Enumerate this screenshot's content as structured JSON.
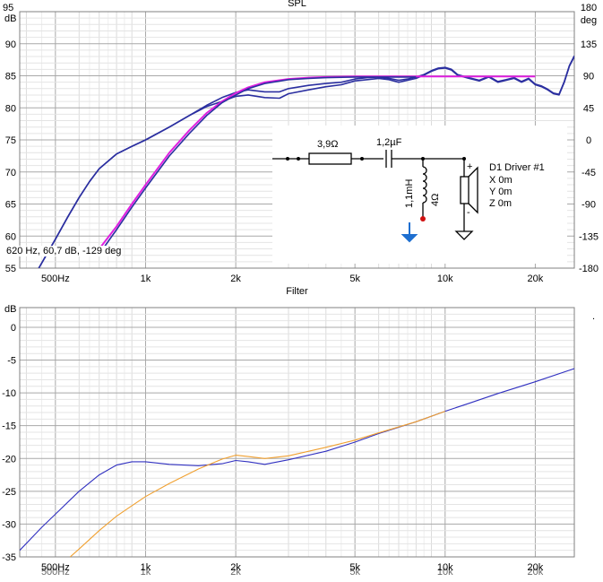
{
  "status_readout": "620 Hz, 60,7 dB, -129 deg",
  "chart_data": [
    {
      "type": "line",
      "title": "SPL",
      "ylabel": "dB",
      "y2label": "deg",
      "xscale": "log",
      "xlim": [
        380,
        27000
      ],
      "ylim": [
        55,
        95
      ],
      "y2lim": [
        -180,
        180
      ],
      "grid": true,
      "xticks": [
        500,
        1000,
        2000,
        5000,
        10000,
        20000
      ],
      "xtick_labels": [
        "500Hz",
        "1k",
        "2k",
        "5k",
        "10k",
        "20k"
      ],
      "yticks": [
        55,
        60,
        65,
        70,
        75,
        80,
        85,
        90,
        95
      ],
      "y2ticks": [
        -180,
        -135,
        -90,
        -45,
        0,
        45,
        90,
        135,
        180
      ],
      "colors": {
        "measured": "#2b2fa0",
        "target": "#e020e0"
      },
      "series": [
        {
          "key": "measured",
          "x": [
            440,
            500,
            550,
            600,
            650,
            700,
            800,
            900,
            1000,
            1200,
            1400,
            1600,
            1800,
            2000,
            2200,
            2500,
            2800,
            3000,
            3500,
            4000,
            4500,
            5000,
            5500,
            6000,
            6500,
            7000,
            7500,
            8000,
            8500,
            9000,
            9500,
            10000,
            10500,
            11000,
            12000,
            13000,
            14000,
            15000,
            16000,
            17000,
            18000,
            19000,
            20000,
            21000,
            22000,
            23000,
            24000,
            25000,
            26000,
            27000
          ],
          "y": [
            55,
            59.5,
            63,
            66,
            68.5,
            70.5,
            72.8,
            74,
            75,
            77,
            78.8,
            80.2,
            81,
            81.8,
            82,
            81.6,
            81.5,
            82.2,
            82.8,
            83.3,
            83.6,
            84.2,
            84.4,
            84.6,
            84.4,
            84.0,
            84.3,
            84.6,
            85.1,
            85.7,
            86.1,
            86.2,
            85.9,
            85.1,
            84.6,
            84.2,
            84.8,
            84.0,
            84.3,
            84.6,
            84.0,
            84.5,
            83.6,
            83.3,
            82.8,
            82.2,
            82.0,
            84.0,
            86.5,
            88.0
          ]
        },
        {
          "key": "measured",
          "x": [
            440,
            500,
            550,
            600,
            650,
            700,
            800,
            900,
            1000,
            1200,
            1400,
            1600,
            1800,
            2000,
            2200,
            2500,
            2800,
            3000,
            3500,
            4000,
            4500,
            5000,
            5500,
            6000,
            6500,
            7000,
            7500,
            8000,
            8500,
            9000,
            9500,
            10000,
            10500,
            11000,
            12000,
            13000,
            14000,
            15000,
            16000,
            17000,
            18000,
            19000,
            20000,
            21000,
            22000,
            23000,
            24000,
            25000,
            26000,
            27000
          ],
          "y": [
            55,
            59.5,
            63,
            66,
            68.5,
            70.5,
            72.8,
            74,
            75,
            77,
            78.8,
            80.4,
            81.6,
            82.4,
            82.8,
            82.5,
            82.5,
            83.0,
            83.5,
            83.8,
            84.0,
            84.5,
            84.7,
            84.8,
            84.6,
            84.3,
            84.5,
            84.8,
            85.2,
            85.8,
            86.2,
            86.3,
            86.0,
            85.2,
            84.7,
            84.3,
            84.9,
            84.1,
            84.4,
            84.7,
            84.1,
            84.6,
            83.7,
            83.4,
            82.9,
            82.3,
            82.1,
            84.1,
            86.6,
            88.1
          ]
        },
        {
          "key": "target",
          "x": [
            700,
            800,
            900,
            1000,
            1200,
            1400,
            1600,
            1800,
            2000,
            2200,
            2500,
            3000,
            3500,
            4000,
            5000,
            6000,
            8000,
            10000,
            14000,
            20000
          ],
          "y": [
            58,
            61.5,
            65,
            68,
            73,
            76.5,
            79.2,
            81,
            82.3,
            83.2,
            84,
            84.5,
            84.7,
            84.8,
            84.9,
            84.9,
            84.9,
            84.9,
            84.9,
            84.9
          ]
        },
        {
          "key": "measured",
          "x": [
            720,
            800,
            900,
            1000,
            1200,
            1400,
            1600,
            1800,
            2000,
            2200,
            2500,
            3000,
            3500,
            4000,
            5000,
            6000,
            8000
          ],
          "y": [
            58,
            61,
            64.5,
            67.5,
            72.5,
            76,
            78.8,
            80.8,
            82,
            83,
            83.8,
            84.4,
            84.6,
            84.7,
            84.8,
            84.8,
            84.8
          ]
        }
      ]
    },
    {
      "type": "line",
      "title": "Filter",
      "ylabel": "dB",
      "xscale": "log",
      "xlim": [
        380,
        27000
      ],
      "ylim": [
        -35,
        3
      ],
      "grid": true,
      "xticks": [
        500,
        1000,
        2000,
        5000,
        10000,
        20000
      ],
      "xtick_labels": [
        "500Hz",
        "1k",
        "2k",
        "5k",
        "10k",
        "20k"
      ],
      "yticks": [
        -35,
        -30,
        -25,
        -20,
        -15,
        -10,
        -5,
        0
      ],
      "colors": {
        "blue": "#3030c0",
        "orange": "#f0a030"
      },
      "series": [
        {
          "key": "blue",
          "x": [
            380,
            450,
            500,
            600,
            700,
            800,
            900,
            1000,
            1200,
            1500,
            1800,
            2000,
            2200,
            2500,
            3000,
            4000,
            5000,
            6000,
            8000,
            10000,
            12000,
            15000,
            20000,
            27000
          ],
          "y": [
            -34,
            -30.5,
            -28.5,
            -25,
            -22.5,
            -21,
            -20.5,
            -20.5,
            -20.9,
            -21.1,
            -20.8,
            -20.3,
            -20.5,
            -20.9,
            -20.2,
            -18.9,
            -17.5,
            -16.2,
            -14.4,
            -12.8,
            -11.6,
            -10.1,
            -8.3,
            -6.3
          ]
        },
        {
          "key": "orange",
          "x": [
            560,
            600,
            700,
            800,
            900,
            1000,
            1200,
            1500,
            1800,
            2000,
            2200,
            2500,
            3000,
            4000,
            5000,
            6000,
            8000,
            10000
          ],
          "y": [
            -35,
            -33.8,
            -31,
            -28.8,
            -27.2,
            -25.8,
            -23.8,
            -21.6,
            -20.1,
            -19.5,
            -19.7,
            -20,
            -19.6,
            -18.3,
            -17.2,
            -16.1,
            -14.4,
            -12.8
          ]
        }
      ]
    }
  ],
  "schematic": {
    "resistor_label": "3,9Ω",
    "capacitor_label": "1,2µF",
    "inductor_label": "1,1mH",
    "inductor_resistance": "4Ω",
    "plus": "+",
    "minus": "-",
    "driver_lines": [
      "D1 Driver #1",
      "X 0m",
      "Y 0m",
      "Z 0m"
    ]
  },
  "bottom_right_mark": "."
}
